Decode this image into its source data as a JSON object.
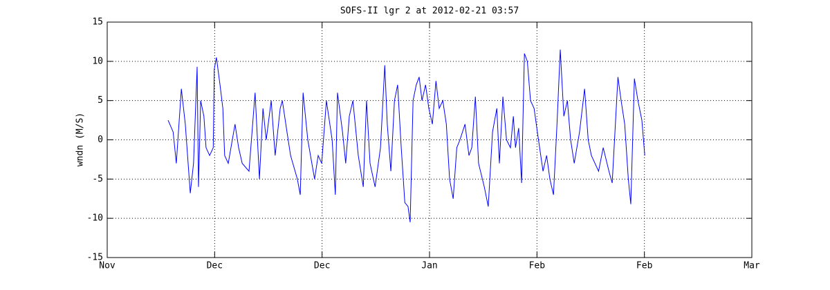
{
  "chart_data": {
    "type": "line",
    "title": "SOFS-II lgr 2 at 2012-02-21 03:57",
    "ylabel": "wndn (M/S)",
    "xlim": [
      0,
      180
    ],
    "xticks": [
      {
        "value": 0,
        "label": "Nov"
      },
      {
        "value": 30,
        "label": "Dec"
      },
      {
        "value": 60,
        "label": "Dec"
      },
      {
        "value": 90,
        "label": "Jan"
      },
      {
        "value": 120,
        "label": "Feb"
      },
      {
        "value": 150,
        "label": "Feb"
      },
      {
        "value": 180,
        "label": "Mar"
      }
    ],
    "ylim": [
      -15,
      15
    ],
    "yticks": [
      -15,
      -10,
      -5,
      0,
      5,
      10,
      15
    ],
    "grid": true,
    "x": [
      17.0,
      18.4,
      19.3,
      20.7,
      21.8,
      23.2,
      24.1,
      25.1,
      25.5,
      26.1,
      27.0,
      27.6,
      28.6,
      29.6,
      29.9,
      30.5,
      31.5,
      32.3,
      32.8,
      33.8,
      35.7,
      36.7,
      37.7,
      39.6,
      41.3,
      42.5,
      43.5,
      44.4,
      45.8,
      46.9,
      48.3,
      48.9,
      50.2,
      51.2,
      53.1,
      53.9,
      54.7,
      56.0,
      57.9,
      58.9,
      59.9,
      61.2,
      62.8,
      63.7,
      64.3,
      65.7,
      66.6,
      67.6,
      68.6,
      70.1,
      71.5,
      72.4,
      73.4,
      74.8,
      76.3,
      77.5,
      78.2,
      79.2,
      80.2,
      81.1,
      82.1,
      83.1,
      84.0,
      84.6,
      85.4,
      86.3,
      87.1,
      87.9,
      88.9,
      89.8,
      90.8,
      91.8,
      92.7,
      93.7,
      94.7,
      95.6,
      96.6,
      97.6,
      98.5,
      99.9,
      101.0,
      101.8,
      102.8,
      103.7,
      105.3,
      106.4,
      107.6,
      108.8,
      109.5,
      110.5,
      111.5,
      112.6,
      113.4,
      114.0,
      114.9,
      115.7,
      116.5,
      117.3,
      118.2,
      119.2,
      120.1,
      121.7,
      122.7,
      123.6,
      124.6,
      125.6,
      126.5,
      127.5,
      128.5,
      129.4,
      130.4,
      131.9,
      133.3,
      134.3,
      135.2,
      136.2,
      137.2,
      138.5,
      140.1,
      141.0,
      142.6,
      143.5,
      144.5,
      145.5,
      146.2,
      147.2,
      148.2,
      149.3,
      150.1
    ],
    "series": [
      {
        "color": "#0000ff",
        "values": [
          2.5,
          1,
          -3,
          6.5,
          2,
          -6.8,
          -3,
          9.3,
          -6,
          5,
          3,
          -1,
          -2,
          -1,
          9,
          10.5,
          7,
          4,
          -2,
          -3,
          2,
          -1,
          -3,
          -4,
          6,
          -5,
          4,
          0,
          5,
          -2,
          4,
          5,
          1,
          -2,
          -5,
          -7,
          6,
          0,
          -5,
          -2,
          -3,
          5,
          0,
          -7,
          6,
          1,
          -3,
          3,
          5,
          -2,
          -6,
          5,
          -3,
          -6,
          -1,
          9.5,
          2,
          -4,
          5,
          7,
          -1,
          -8,
          -8.5,
          -10.5,
          5,
          7,
          8,
          5,
          7,
          4,
          2,
          7.5,
          4,
          5,
          2,
          -5,
          -7.5,
          -1,
          0,
          2,
          -2,
          -1,
          5.5,
          -3,
          -6,
          -8.5,
          1,
          4,
          -3,
          5.5,
          0,
          -1,
          3,
          -1,
          1.5,
          -5.5,
          11,
          10,
          5,
          4,
          1,
          -4,
          -2,
          -5,
          -7,
          2,
          11.5,
          3,
          5,
          0,
          -3,
          1,
          6.5,
          0,
          -2,
          -3,
          -4,
          -1,
          -4,
          -5.5,
          8,
          5,
          2,
          -5,
          -8.2,
          7.8,
          5,
          2.5,
          -2
        ]
      }
    ]
  }
}
